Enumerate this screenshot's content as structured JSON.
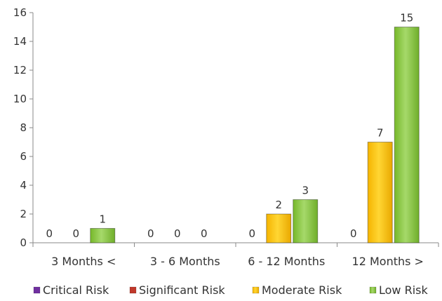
{
  "chart_data": {
    "type": "bar",
    "categories": [
      "3 Months <",
      "3 - 6 Months",
      "6 - 12 Months",
      "12 Months >"
    ],
    "series": [
      {
        "name": "Critical Risk",
        "color": "#7030A0",
        "values": [
          0,
          0,
          0,
          0
        ]
      },
      {
        "name": "Significant Risk",
        "color": "#C0392B",
        "values": [
          0,
          0,
          0,
          0
        ]
      },
      {
        "name": "Moderate Risk",
        "color": "#FFC000",
        "values": [
          0,
          0,
          2,
          7
        ]
      },
      {
        "name": "Low Risk",
        "color": "#8DC63F",
        "values": [
          1,
          0,
          3,
          15
        ]
      }
    ],
    "data_labels": [
      [
        "0",
        "0",
        "1"
      ],
      [
        "0",
        "0",
        "0"
      ],
      [
        "0",
        "2",
        "3"
      ],
      [
        "0",
        "7",
        "15"
      ]
    ],
    "y_ticks": [
      0,
      2,
      4,
      6,
      8,
      10,
      12,
      14,
      16
    ],
    "ylim": [
      0,
      16
    ],
    "legend_position": "bottom",
    "grid": false,
    "title": "",
    "xlabel": "",
    "ylabel": ""
  }
}
